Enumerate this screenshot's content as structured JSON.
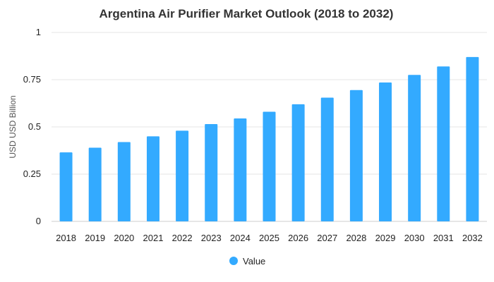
{
  "chart_data": {
    "type": "bar",
    "title": "Argentina Air Purifier Market Outlook (2018 to 2032)",
    "xlabel": "",
    "ylabel": "USD USD Billion",
    "categories": [
      "2018",
      "2019",
      "2020",
      "2021",
      "2022",
      "2023",
      "2024",
      "2025",
      "2026",
      "2027",
      "2028",
      "2029",
      "2030",
      "2031",
      "2032"
    ],
    "series": [
      {
        "name": "Value",
        "color": "#33aaff",
        "values": [
          0.365,
          0.39,
          0.42,
          0.45,
          0.48,
          0.515,
          0.545,
          0.58,
          0.62,
          0.655,
          0.695,
          0.735,
          0.775,
          0.82,
          0.87
        ]
      }
    ],
    "ylim": [
      0,
      1
    ],
    "yticks": [
      0,
      0.25,
      0.5,
      0.75,
      1
    ],
    "ytick_labels": [
      "0",
      "0.25",
      "0.5",
      "0.75",
      "1"
    ],
    "grid": true,
    "legend_position": "bottom-center"
  }
}
